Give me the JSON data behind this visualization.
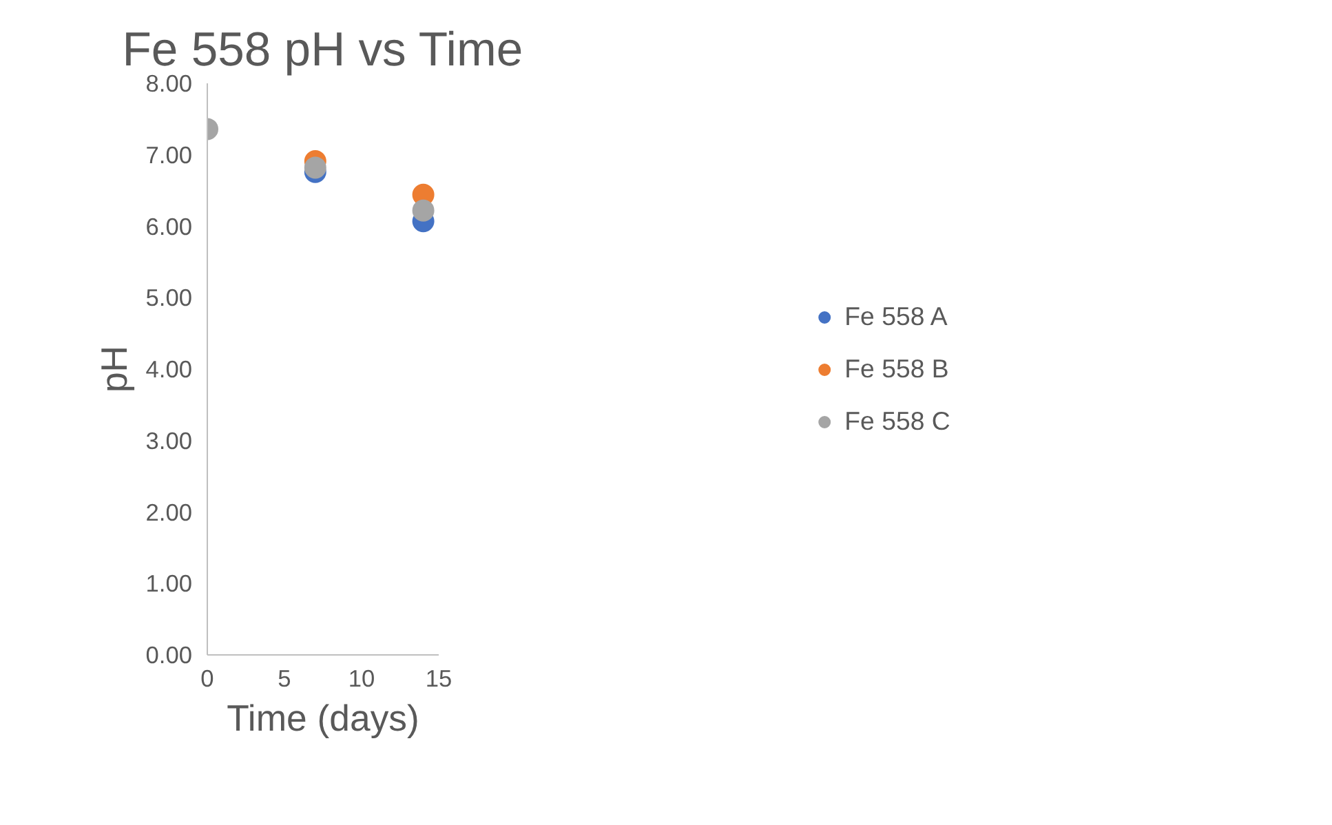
{
  "chart_data": {
    "type": "scatter",
    "title": "Fe 558 pH vs Time",
    "xlabel": "Time (days)",
    "ylabel": "pH",
    "x": [
      0,
      7,
      14
    ],
    "series": [
      {
        "name": "Fe 558 A",
        "color": "#4472c4",
        "values": [
          null,
          6.76,
          6.07
        ]
      },
      {
        "name": "Fe 558 B",
        "color": "#ed7d31",
        "values": [
          null,
          6.91,
          6.44
        ]
      },
      {
        "name": "Fe 558 C",
        "color": "#a5a5a5",
        "values": [
          7.36,
          6.82,
          6.22
        ]
      }
    ],
    "xlim": [
      0,
      15
    ],
    "xticks": [
      0,
      5,
      10,
      15
    ],
    "ylim": [
      0,
      8
    ],
    "yticks": [
      {
        "value": 0,
        "label": "0.00"
      },
      {
        "value": 1,
        "label": "1.00"
      },
      {
        "value": 2,
        "label": "2.00"
      },
      {
        "value": 3,
        "label": "3.00"
      },
      {
        "value": 4,
        "label": "4.00"
      },
      {
        "value": 5,
        "label": "5.00"
      },
      {
        "value": 6,
        "label": "6.00"
      },
      {
        "value": 7,
        "label": "7.00"
      },
      {
        "value": 8,
        "label": "8.00"
      }
    ],
    "grid": false,
    "legend": "right",
    "marker": "circle"
  }
}
